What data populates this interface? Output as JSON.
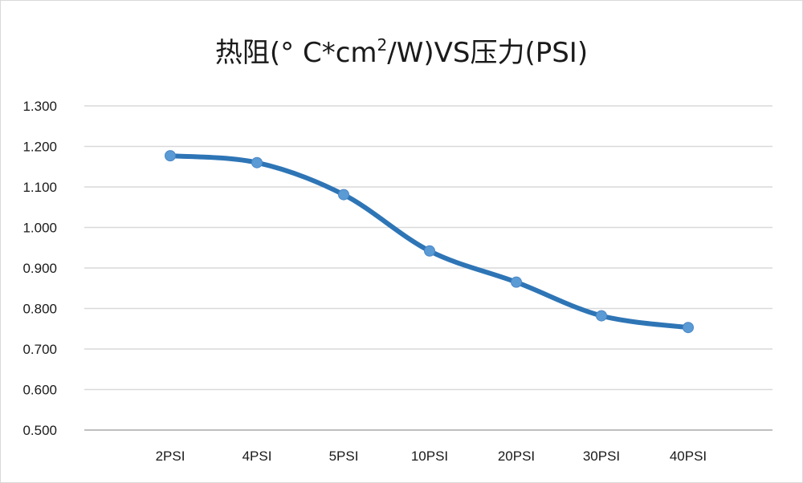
{
  "chart_data": {
    "type": "line",
    "title_main": "热阻(° C*cm",
    "title_sup": "2",
    "title_tail": "/W)VS压力(PSI)",
    "categories": [
      "2PSI",
      "4PSI",
      "5PSI",
      "10PSI",
      "20PSI",
      "30PSI",
      "40PSI"
    ],
    "series": [
      {
        "values": [
          1.177,
          1.16,
          1.081,
          0.942,
          0.865,
          0.782,
          0.753
        ]
      }
    ],
    "y_ticks": [
      "0.500",
      "0.600",
      "0.700",
      "0.800",
      "0.900",
      "1.000",
      "1.100",
      "1.200",
      "1.300"
    ],
    "ylim": [
      0.5,
      1.3
    ],
    "grid": true,
    "legend": "none",
    "line_color": "#2e75b6",
    "marker_color": "#5b9bd5"
  }
}
